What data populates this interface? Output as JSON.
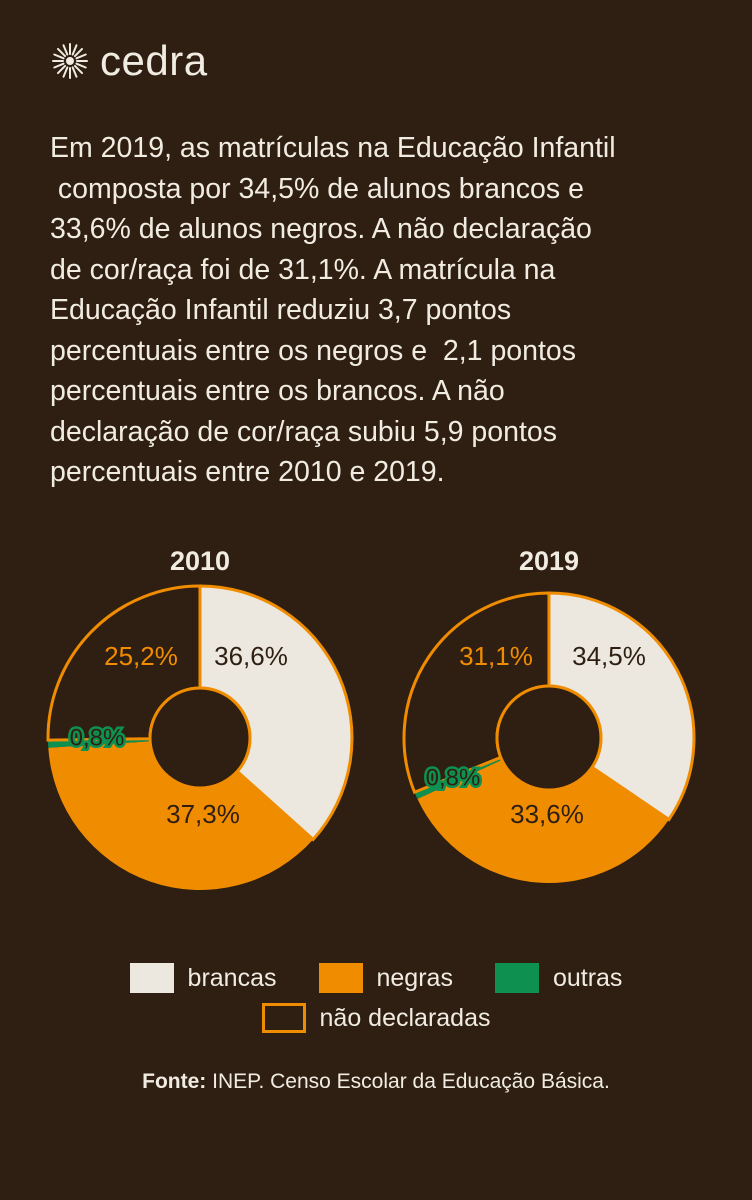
{
  "brand": {
    "name": "cedra"
  },
  "intro_lines": [
    "Em 2019, as matrículas na Educação Infantil",
    " composta por 34,5% de alunos brancos e",
    "33,6% de alunos negros. A não declaração",
    "de cor/raça foi de 31,1%. A matrícula na",
    "Educação Infantil reduziu 3,7 pontos",
    "percentuais entre os negros e  2,1 pontos",
    "percentuais entre os brancos. A não",
    "declaração de cor/raça subiu 5,9 pontos",
    "percentuais entre 2010 e 2019."
  ],
  "colors": {
    "background": "#2f1f12",
    "brancas": "#ece8df",
    "negras": "#f08c00",
    "outras": "#0e9150",
    "nao_declaradas": "#f08c00",
    "text": "#f1ece2"
  },
  "chart_data": [
    {
      "type": "pie",
      "title": "2010",
      "slices": [
        {
          "category": "brancas",
          "value": 36.6,
          "label": "36,6%"
        },
        {
          "category": "negras",
          "value": 37.3,
          "label": "37,3%"
        },
        {
          "category": "outras",
          "value": 0.8,
          "label": "0,8%"
        },
        {
          "category": "não declaradas",
          "value": 25.2,
          "label": "25,2%"
        }
      ]
    },
    {
      "type": "pie",
      "title": "2019",
      "slices": [
        {
          "category": "brancas",
          "value": 34.5,
          "label": "34,5%"
        },
        {
          "category": "negras",
          "value": 33.6,
          "label": "33,6%"
        },
        {
          "category": "outras",
          "value": 0.8,
          "label": "0,8%"
        },
        {
          "category": "não declaradas",
          "value": 31.1,
          "label": "31,1%"
        }
      ]
    }
  ],
  "legend": {
    "brancas": "brancas",
    "negras": "negras",
    "outras": "outras",
    "nao_declaradas": "não declaradas"
  },
  "source": {
    "label": "Fonte:",
    "text": " INEP. Censo Escolar da Educação Básica."
  }
}
